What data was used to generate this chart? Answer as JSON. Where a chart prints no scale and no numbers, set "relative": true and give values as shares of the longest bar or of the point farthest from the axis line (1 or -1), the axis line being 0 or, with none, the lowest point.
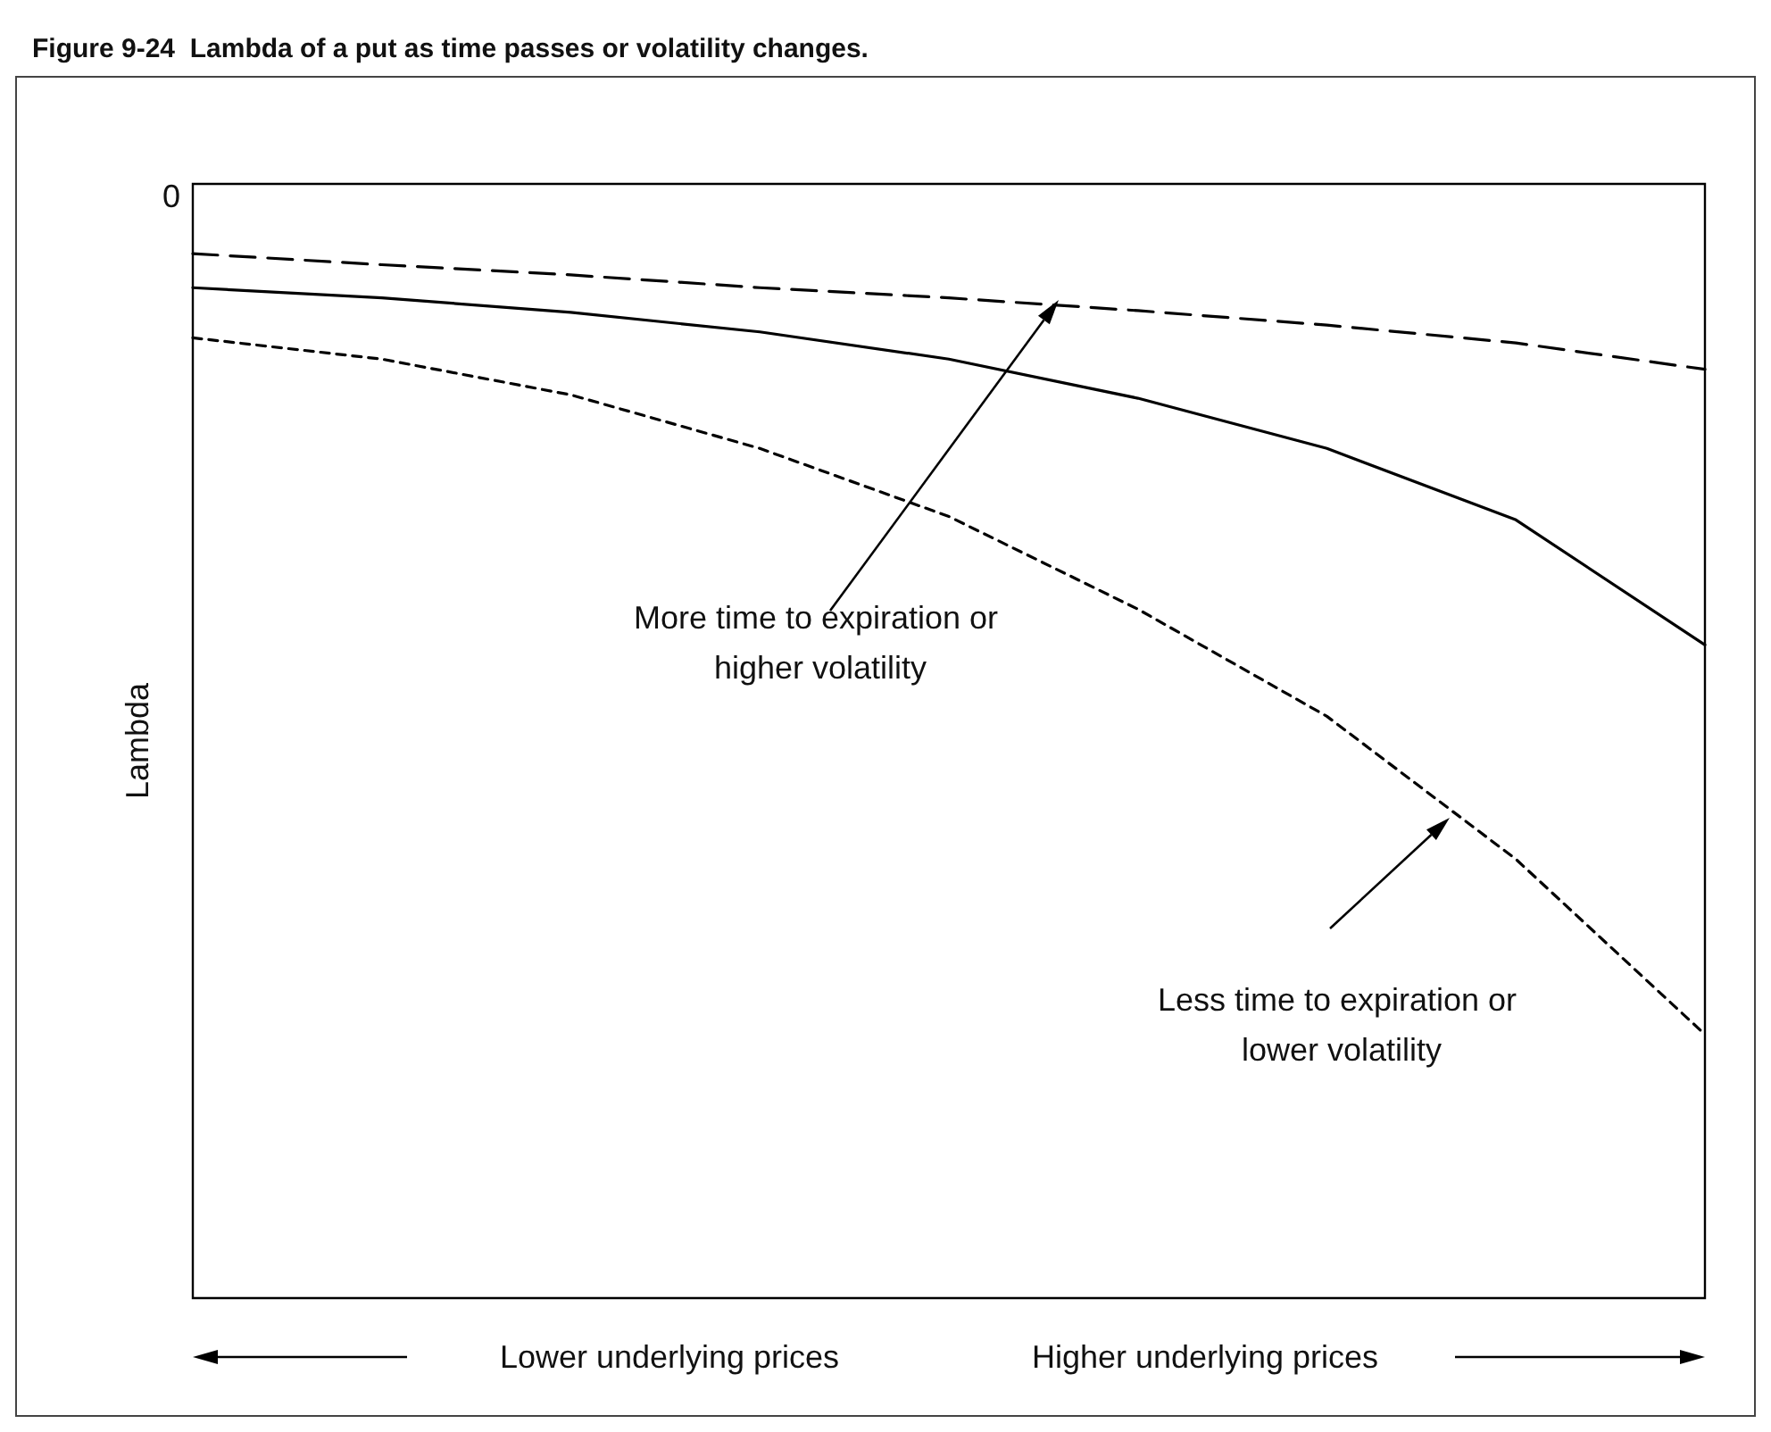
{
  "chart_data": {
    "type": "line",
    "title": "Figure 9-24  Lambda of a put as time passes or volatility changes.",
    "ylabel": "Lambda",
    "relative": true,
    "grid": false,
    "marker": "none",
    "categories": [
      null,
      null,
      null,
      null,
      null,
      null,
      null,
      null,
      null
    ],
    "series": [
      {
        "color": "#000000",
        "line_style": "dashed",
        "values": [
          -0.082,
          -0.095,
          -0.107,
          -0.122,
          -0.134,
          -0.149,
          -0.166,
          -0.187,
          -0.218
        ]
      },
      {
        "color": "#000000",
        "line_style": "solid",
        "values": [
          -0.122,
          -0.134,
          -0.151,
          -0.174,
          -0.206,
          -0.252,
          -0.311,
          -0.395,
          -0.542
        ]
      },
      {
        "color": "#000000",
        "line_style": "dotted",
        "values": [
          -0.181,
          -0.206,
          -0.248,
          -0.311,
          -0.391,
          -0.5,
          -0.626,
          -0.794,
          -1
        ]
      }
    ],
    "annotations": [
      "More time to expiration or higher volatility",
      "Less time to expiration or lower volatility",
      "Lower underlying prices",
      "Higher underlying prices",
      "0"
    ]
  }
}
